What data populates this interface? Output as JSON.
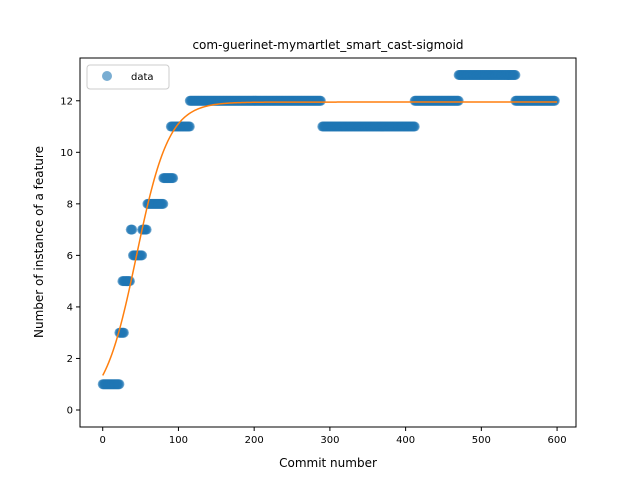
{
  "chart_data": {
    "type": "scatter",
    "title": "com-guerinet-mymartlet_smart_cast-sigmoid",
    "xlabel": "Commit number",
    "ylabel": "Number of instance of a feature",
    "xlim": [
      -30,
      625
    ],
    "ylim": [
      -0.66,
      13.66
    ],
    "xticks": [
      0,
      100,
      200,
      300,
      400,
      500,
      600
    ],
    "yticks": [
      0,
      2,
      4,
      6,
      8,
      10,
      12
    ],
    "grid": false,
    "legend": {
      "position": "top-left",
      "entries": [
        "data"
      ]
    },
    "colors": {
      "data": "#1f77b4",
      "fit": "#ff7f0e"
    },
    "series": [
      {
        "name": "data",
        "kind": "scatter",
        "segments": [
          {
            "x_start": 0,
            "x_end": 22,
            "y": 1
          },
          {
            "x_start": 22,
            "x_end": 28,
            "y": 3
          },
          {
            "x_start": 26,
            "x_end": 36,
            "y": 5
          },
          {
            "x_start": 37,
            "x_end": 39,
            "y": 7
          },
          {
            "x_start": 40,
            "x_end": 52,
            "y": 6
          },
          {
            "x_start": 52,
            "x_end": 58,
            "y": 7
          },
          {
            "x_start": 59,
            "x_end": 80,
            "y": 8
          },
          {
            "x_start": 80,
            "x_end": 93,
            "y": 9
          },
          {
            "x_start": 90,
            "x_end": 115,
            "y": 11
          },
          {
            "x_start": 115,
            "x_end": 288,
            "y": 12
          },
          {
            "x_start": 290,
            "x_end": 412,
            "y": 11
          },
          {
            "x_start": 412,
            "x_end": 470,
            "y": 12
          },
          {
            "x_start": 470,
            "x_end": 545,
            "y": 13
          },
          {
            "x_start": 545,
            "x_end": 597,
            "y": 12
          }
        ]
      },
      {
        "kind": "line",
        "model": "sigmoid",
        "params": {
          "L": 11.95,
          "k": 0.0465,
          "x0": 44.5
        },
        "x_range": [
          0,
          600
        ]
      }
    ]
  }
}
